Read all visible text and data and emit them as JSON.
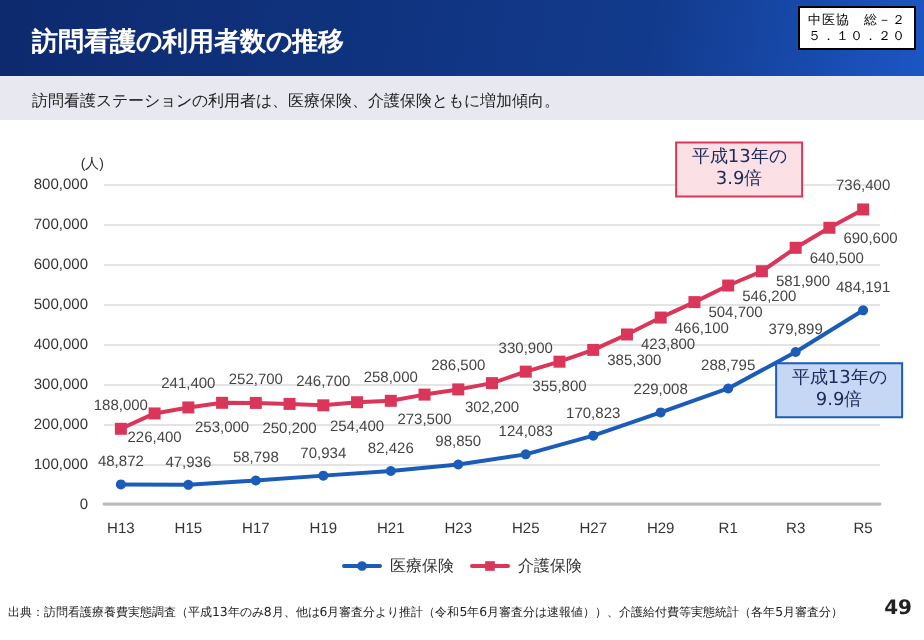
{
  "chart_data": {
    "type": "line",
    "title": "訪問看護の利用者数の推移",
    "subtitle": "訪問看護ステーションの利用者は、医療保険、介護保険ともに増加傾向。",
    "ylabel": "(人)",
    "categories": [
      "H13",
      null,
      "H15",
      null,
      "H17",
      null,
      "H19",
      null,
      "H21",
      null,
      "H23",
      null,
      "H25",
      null,
      "H27",
      null,
      "H29",
      null,
      "R1",
      null,
      "R3",
      null,
      "R5"
    ],
    "series": [
      {
        "name": "医療保険",
        "color": "#1a5cb8",
        "marker": "circle",
        "values": [
          48872,
          null,
          47936,
          null,
          58798,
          null,
          70934,
          null,
          82426,
          null,
          98850,
          null,
          124083,
          null,
          170823,
          null,
          229008,
          null,
          288795,
          null,
          379899,
          null,
          484191
        ],
        "value_labels": [
          "48,872",
          null,
          "47,936",
          null,
          "58,798",
          null,
          "70,934",
          null,
          "82,426",
          null,
          "98,850",
          null,
          "124,083",
          null,
          "170,823",
          null,
          "229,008",
          null,
          "288,795",
          null,
          "379,899",
          null,
          "484,191"
        ]
      },
      {
        "name": "介護保険",
        "color": "#d9365a",
        "marker": "square",
        "values": [
          188000,
          226400,
          241400,
          253000,
          252700,
          250200,
          246700,
          254400,
          258000,
          273500,
          286500,
          302200,
          330900,
          355800,
          385300,
          423800,
          466100,
          504700,
          546200,
          581900,
          640500,
          690600,
          736400
        ],
        "value_labels": [
          "188,000",
          "226,400",
          "241,400",
          "253,000",
          "252,700",
          "250,200",
          "246,700",
          "254,400",
          "258,000",
          "273,500",
          "286,500",
          "302,200",
          "330,900",
          "355,800",
          "385,300",
          "423,800",
          "466,100",
          "504,700",
          "546,200",
          "581,900",
          "640,500",
          "690,600",
          "736,400"
        ]
      }
    ],
    "ylim": [
      0,
      800000
    ],
    "yticks": [
      0,
      {
        "value": 100000,
        "label": "100,000"
      },
      {
        "value": 200000,
        "label": "200,000"
      },
      {
        "value": 300000,
        "label": "300,000"
      },
      {
        "value": 400000,
        "label": "400,000"
      },
      {
        "value": 500000,
        "label": "500,000"
      },
      {
        "value": 600000,
        "label": "600,000"
      },
      {
        "value": 700000,
        "label": "700,000"
      },
      {
        "value": 800000,
        "label": "800,000"
      }
    ],
    "grid": "y",
    "legend": "bottom",
    "line_style": "solid",
    "annotations": [
      "中医協　総－２",
      "５．１０．２０",
      "出典：訪問看護療養費実態調査（平成13年のみ8月、他は6月審査分より推計（令和5年6月審査分は速報値））、介護給付費等実態統計（各年5月審査分）",
      "49",
      "平成13年の3.9倍",
      "平成13年の9.9倍"
    ]
  }
}
